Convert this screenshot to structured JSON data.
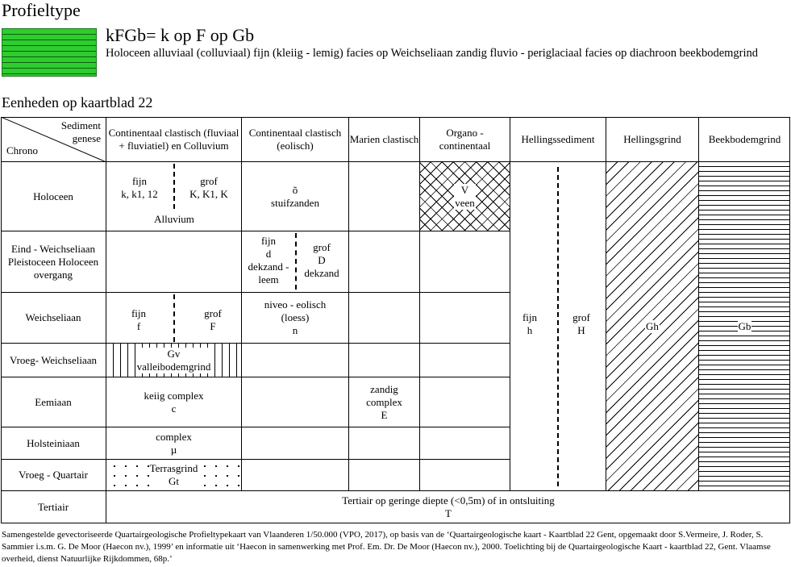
{
  "header": {
    "title": "Profieltype",
    "legend_code": "kFGb= k op F op Gb",
    "legend_desc": "Holoceen alluviaal (colluviaal) fijn (kleiig - lemig) facies op Weichseliaan zandig fluvio - periglaciaal facies op diachroon beekbodemgrind",
    "swatch_color": "#2ecc2e"
  },
  "units_title": "Eenheden op kaartblad 22",
  "table": {
    "corner": {
      "top": "Sediment\ngenese",
      "bottom": "Chrono"
    },
    "columns": [
      "Continentaal clastisch (fluviaal + fluviatiel) en Colluvium",
      "Continentaal clastisch (eolisch)",
      "Marien clastisch",
      "Organo - continentaal",
      "Hellingssediment",
      "Hellingsgrind",
      "Beekbodemgrind"
    ],
    "rows": [
      "Holoceen",
      "Eind - Weichseliaan Pleistoceen Holoceen overgang",
      "Weichseliaan",
      "Vroeg- Weichseliaan",
      "Eemiaan",
      "Holsteiniaan",
      "Vroeg - Quartair",
      "Tertiair"
    ],
    "cells": {
      "holo_fijn": "fijn\nk, k1, 12",
      "holo_grof": "grof\nK, K1, K",
      "holo_alluvium": "Alluvium",
      "holo_eolisch": "õ\nstuifzanden",
      "holo_veen": "V\nveen",
      "eind_fijn": "fijn\nd\ndekzand -\nleem",
      "eind_grof": "grof\nD\ndekzand",
      "weich_fijn": "fijn\nf",
      "weich_grof": "grof\nF",
      "weich_eolisch": "niveo - eolisch\n(loess)\nn",
      "vroegw_gv": "Gv\nvalleibodemgrind",
      "eem_keiig": "keiig complex\nc",
      "eem_zandig": "zandig\ncomplex\nE",
      "holst_complex": "complex\nµ",
      "vq_terras": "Terrasgrind\nGt",
      "helling_fijn": "fijn\nh",
      "helling_grof": "grof\nH",
      "gh": "Gh",
      "gb": "Gb",
      "tertiair": "Tertiair op geringe diepte (<0,5m) of in ontsluiting\nT"
    }
  },
  "footnote": "Samengestelde gevectoriseerde Quartairgeologische Profieltypekaart van Vlaanderen 1/50.000 (VPO, 2017), op basis van de ‘Quartairgeologische kaart - Kaartblad 22 Gent, opgemaakt door S.Vermeire, J. Roder, S. Sammier i.s.m. G. De Moor (Haecon nv.), 1999’ en informatie uit ‘Haecon in samenwerking met Prof. Em. Dr. De Moor (Haecon nv.), 2000. Toelichting bij de Quartairgeologische Kaart - kaartblad 22, Gent. Vlaamse overheid, dienst Natuurlijke Rijkdommen, 68p.’"
}
